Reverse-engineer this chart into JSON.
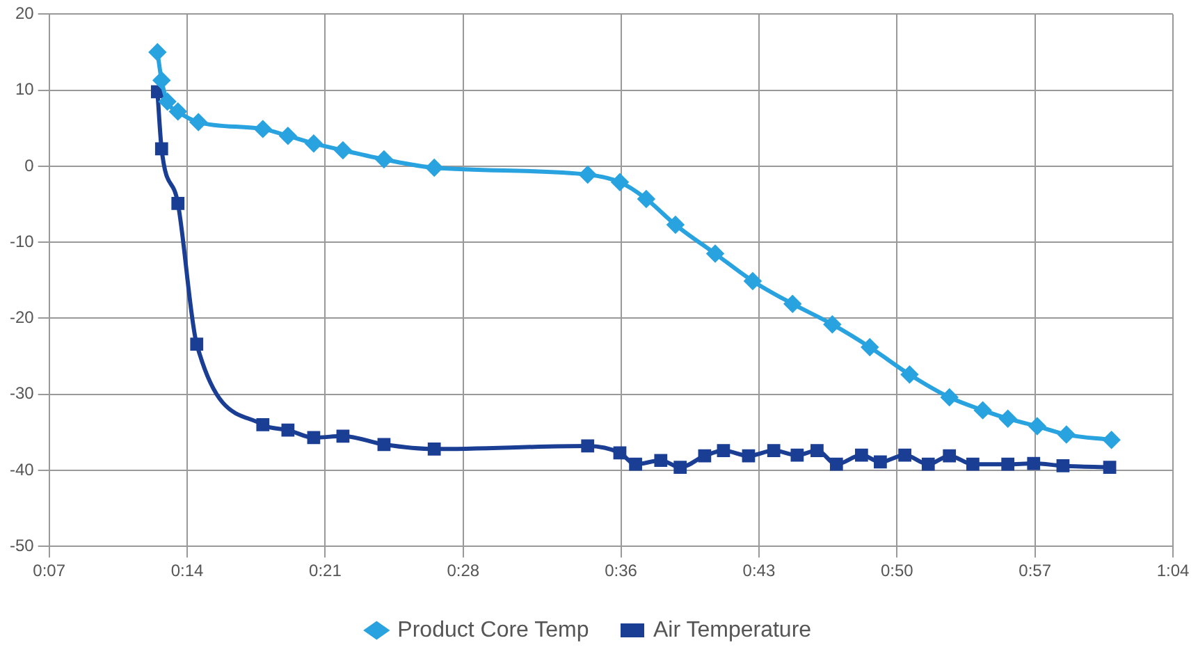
{
  "chart_data": {
    "type": "line",
    "xlim": [
      0.11667,
      1.06667
    ],
    "xticks": [
      {
        "value": 0.11667,
        "label": "0:07"
      },
      {
        "value": 0.23333,
        "label": "0:14"
      },
      {
        "value": 0.35,
        "label": "0:21"
      },
      {
        "value": 0.46667,
        "label": "0:28"
      },
      {
        "value": 0.6,
        "label": "0:36"
      },
      {
        "value": 0.71667,
        "label": "0:43"
      },
      {
        "value": 0.83333,
        "label": "0:50"
      },
      {
        "value": 0.95,
        "label": "0:57"
      },
      {
        "value": 1.06667,
        "label": "1:04"
      }
    ],
    "ylim": [
      -50,
      20
    ],
    "yticks": [
      -50,
      -40,
      -30,
      -20,
      -10,
      0,
      10,
      20
    ],
    "grid": true,
    "legend": "bottom",
    "series": [
      {
        "name": "Product Core Temp",
        "color": "#29a3e0",
        "marker": "diamond",
        "x": [
          0.2082,
          0.2117,
          0.2166,
          0.2255,
          0.2428,
          0.2973,
          0.3185,
          0.3403,
          0.365,
          0.3997,
          0.4422,
          0.5719,
          0.5991,
          0.6214,
          0.6461,
          0.6797,
          0.7114,
          0.7451,
          0.7787,
          0.8104,
          0.844,
          0.8777,
          0.9059,
          0.9271,
          0.9519,
          0.9766,
          1.0147
        ],
        "values": [
          15,
          11.3,
          8.5,
          7.2,
          5.8,
          4.9,
          4.0,
          3.0,
          2.1,
          0.9,
          -0.2,
          -1.1,
          -2.1,
          -4.3,
          -7.7,
          -11.5,
          -15.1,
          -18.1,
          -20.8,
          -23.8,
          -27.4,
          -30.4,
          -32.1,
          -33.2,
          -34.2,
          -35.3,
          -36.0
        ]
      },
      {
        "name": "Air Temperature",
        "color": "#1a3e94",
        "marker": "square",
        "x": [
          0.2082,
          0.2117,
          0.2255,
          0.2414,
          0.2973,
          0.3185,
          0.3403,
          0.365,
          0.3997,
          0.4422,
          0.5719,
          0.5991,
          0.6124,
          0.6337,
          0.6501,
          0.6708,
          0.6867,
          0.7079,
          0.7292,
          0.749,
          0.7658,
          0.7822,
          0.8034,
          0.8193,
          0.84,
          0.8598,
          0.8777,
          0.8975,
          0.9271,
          0.9489,
          0.9737,
          1.0132
        ],
        "values": [
          9.8,
          2.3,
          -4.9,
          -23.4,
          -34.0,
          -34.7,
          -35.7,
          -35.5,
          -36.6,
          -37.2,
          -36.8,
          -37.7,
          -39.2,
          -38.7,
          -39.6,
          -38.1,
          -37.4,
          -38.1,
          -37.4,
          -38.0,
          -37.4,
          -39.2,
          -38.0,
          -38.9,
          -38.0,
          -39.2,
          -38.1,
          -39.2,
          -39.2,
          -39.1,
          -39.4,
          -39.6
        ]
      }
    ]
  }
}
